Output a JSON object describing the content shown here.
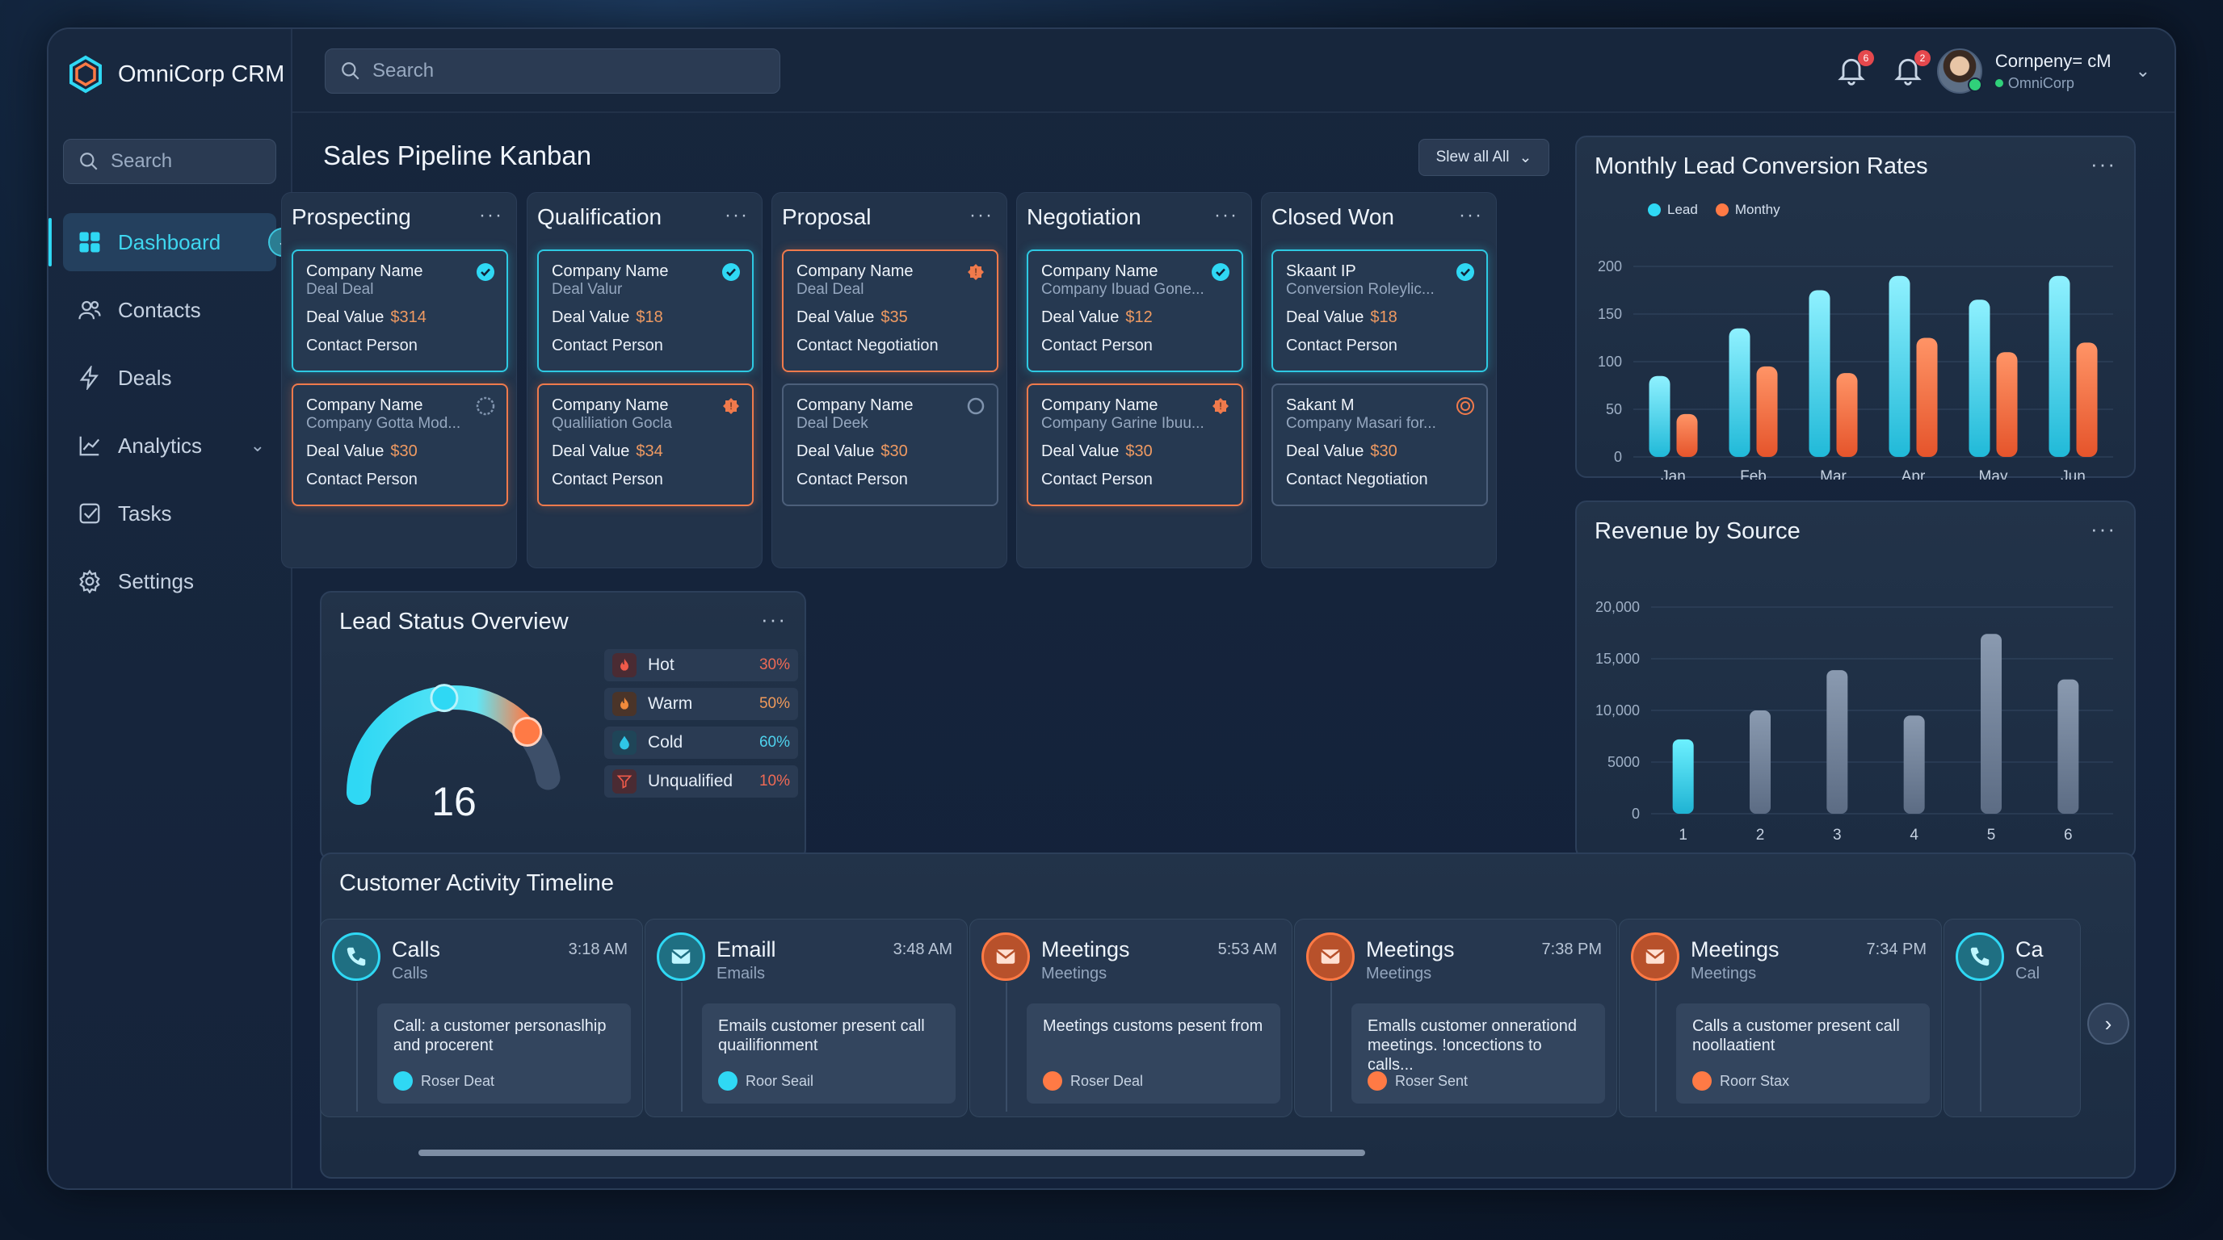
{
  "app": {
    "name": "OmniCorp CRM"
  },
  "header": {
    "search_placeholder": "Search",
    "notifications": [
      {
        "count": "6"
      },
      {
        "count": "2"
      }
    ],
    "user": {
      "name": "Cornpeny= cM",
      "org": "OmniCorp"
    }
  },
  "sidebar": {
    "search_placeholder": "Search",
    "items": [
      {
        "label": "Dashboard",
        "icon": "grid-icon",
        "active": true
      },
      {
        "label": "Contacts",
        "icon": "users-icon"
      },
      {
        "label": "Deals",
        "icon": "lightning-icon"
      },
      {
        "label": "Analytics",
        "icon": "chart-line-icon"
      },
      {
        "label": "Tasks",
        "icon": "checkbox-icon"
      },
      {
        "label": "Settings",
        "icon": "gear-icon"
      }
    ]
  },
  "kanban": {
    "title": "Sales Pipeline Kanban",
    "filter_label": "Slew all All",
    "columns": [
      {
        "name": "Prospecting",
        "cards": [
          {
            "l1": "Company Name",
            "l2": "Deal Deal",
            "value_label": "Deal Value",
            "value": "$314",
            "l4": "Contact Person",
            "style": "cyan",
            "status": "check"
          },
          {
            "l1": "Company Name",
            "l2": "Company Gotta Mod...",
            "value_label": "Deal Value",
            "value": "$30",
            "l4": "Contact Person",
            "style": "orange",
            "status": "pending"
          }
        ]
      },
      {
        "name": "Qualification",
        "cards": [
          {
            "l1": "Company Name",
            "l2": "Deal Valur",
            "value_label": "Deal Value",
            "value": "$18",
            "l4": "Contact Person",
            "style": "cyan",
            "status": "check"
          },
          {
            "l1": "Company Name",
            "l2": "Qualiliation Gocla",
            "value_label": "Deal Value",
            "value": "$34",
            "l4": "Contact Person",
            "style": "orange",
            "status": "alert"
          }
        ]
      },
      {
        "name": "Proposal",
        "cards": [
          {
            "l1": "Company Name",
            "l2": "Deal Deal",
            "value_label": "Deal Value",
            "value": "$35",
            "l4": "Contact Negotiation",
            "style": "orange",
            "status": "alert"
          },
          {
            "l1": "Company Name",
            "l2": "Deal Deek",
            "value_label": "Deal Value",
            "value": "$30",
            "l4": "Contact Person",
            "style": "gray",
            "status": "empty"
          }
        ]
      },
      {
        "name": "Negotiation",
        "cards": [
          {
            "l1": "Company Name",
            "l2": "Company Ibuad Gone...",
            "value_label": "Deal Value",
            "value": "$12",
            "l4": "Contact Person",
            "style": "cyan",
            "status": "check"
          },
          {
            "l1": "Company Name",
            "l2": "Company Garine Ibuu...",
            "value_label": "Deal Value",
            "value": "$30",
            "l4": "Contact Person",
            "style": "orange",
            "status": "alert"
          }
        ]
      },
      {
        "name": "Closed Won",
        "cards": [
          {
            "l1": "Skaant IP",
            "l2": "Conversion Roleylic...",
            "value_label": "Deal Value",
            "value": "$18",
            "l4": "Contact Person",
            "style": "cyan",
            "status": "check"
          },
          {
            "l1": "Sakant M",
            "l2": "Company Masari for...",
            "value_label": "Deal Value",
            "value": "$30",
            "l4": "Contact Negotiation",
            "style": "gray",
            "status": "target"
          }
        ]
      }
    ]
  },
  "lead_status": {
    "title": "Lead Status Overview",
    "total": "16",
    "gauge_fraction": 0.82,
    "rows": [
      {
        "label": "Hot",
        "pct": "30%",
        "icon": "flame-icon",
        "color": "#ef5a4a"
      },
      {
        "label": "Warm",
        "pct": "50%",
        "icon": "fire-icon",
        "color": "#f08a3c"
      },
      {
        "label": "Cold",
        "pct": "60%",
        "icon": "water-drop-icon",
        "color": "#2fc6e6"
      },
      {
        "label": "Unqualified",
        "pct": "10%",
        "icon": "funnel-icon",
        "color": "#ef5a4a"
      }
    ]
  },
  "timeline": {
    "title": "Customer Activity Timeline",
    "items": [
      {
        "title": "Calls",
        "sub": "Calls",
        "time": "3:18 AM",
        "body": "Call: a customer personaslhip and procerent",
        "foot": "Roser Deat",
        "kind": "call"
      },
      {
        "title": "Emaill",
        "sub": "Emails",
        "time": "3:48 AM",
        "body": "Emails customer present call quailifionment",
        "foot": "Roor Seail",
        "kind": "email"
      },
      {
        "title": "Meetings",
        "sub": "Meetings",
        "time": "5:53 AM",
        "body": "Meetings customs pesent from",
        "foot": "Roser Deal",
        "kind": "meeting"
      },
      {
        "title": "Meetings",
        "sub": "Meetings",
        "time": "7:38 PM",
        "body": "Emalls customer onnerationd meetings. !oncections to calls...",
        "foot": "Roser Sent",
        "kind": "meeting"
      },
      {
        "title": "Meetings",
        "sub": "Meetings",
        "time": "7:34 PM",
        "body": "Calls a customer present call noollaatient",
        "foot": "Roorr Stax",
        "kind": "meeting"
      },
      {
        "title": "Ca",
        "sub": "Cal",
        "time": "",
        "body": "",
        "foot": "",
        "kind": "call"
      }
    ]
  },
  "chart_data": [
    {
      "type": "bar",
      "title": "Monthly Lead Conversion Rates",
      "categories": [
        "Jan",
        "Feb",
        "Mar",
        "Apr",
        "May",
        "Jun"
      ],
      "series": [
        {
          "name": "Lead",
          "values": [
            85,
            135,
            175,
            190,
            165,
            190
          ],
          "color": "#2fd8f4"
        },
        {
          "name": "Monthy",
          "values": [
            45,
            95,
            88,
            125,
            110,
            120
          ],
          "color": "#ff7a45"
        }
      ],
      "yticks": [
        "200",
        "150",
        "100",
        "50",
        "0"
      ],
      "ylim": [
        0,
        200
      ],
      "grid": true,
      "legend": "top-left"
    },
    {
      "type": "bar",
      "title": "Revenue by Source",
      "categories": [
        "1",
        "2",
        "3",
        "4",
        "5",
        "6"
      ],
      "values": [
        7200,
        10000,
        13900,
        9500,
        17400,
        13000
      ],
      "highlight_index": 0,
      "yticks": [
        "20,000",
        "15,000",
        "10,000",
        "5000",
        "0"
      ],
      "ylim": [
        0,
        20000
      ],
      "grid": true
    }
  ]
}
